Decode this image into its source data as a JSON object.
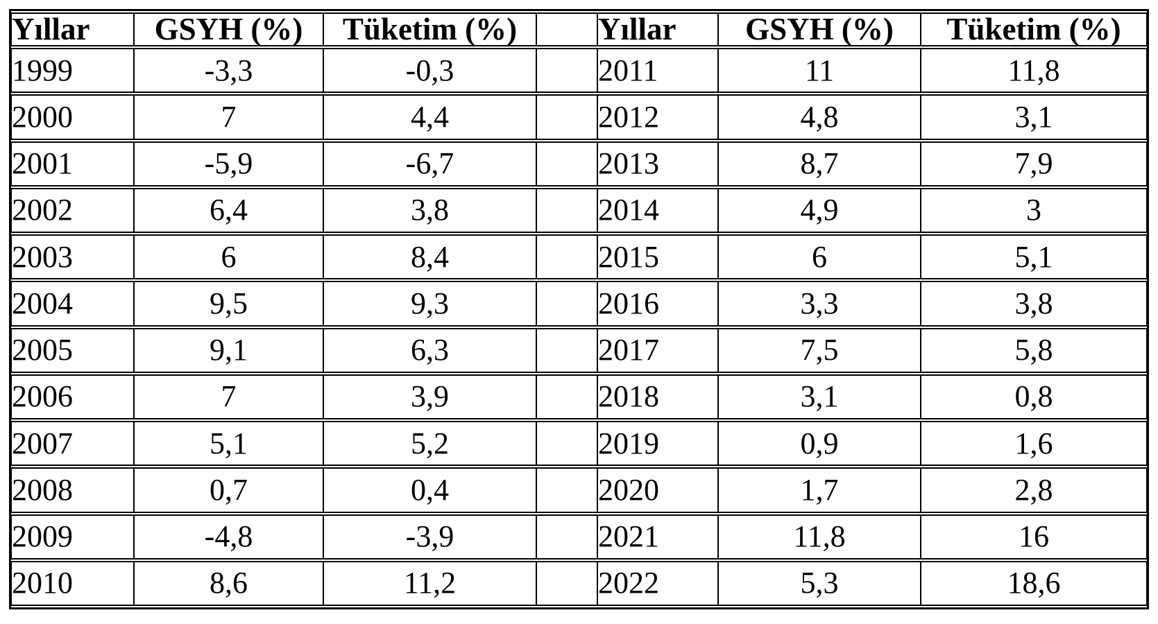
{
  "table": {
    "headers": [
      "Yıllar",
      "GSYH (%)",
      "Tüketim (%)",
      "",
      "Yıllar",
      "GSYH (%)",
      "Tüketim (%)"
    ],
    "rows": [
      [
        "1999",
        "-3,3",
        "-0,3",
        "",
        "2011",
        "11",
        "11,8"
      ],
      [
        "2000",
        "7",
        "4,4",
        "",
        "2012",
        "4,8",
        "3,1"
      ],
      [
        "2001",
        "-5,9",
        "-6,7",
        "",
        "2013",
        "8,7",
        "7,9"
      ],
      [
        "2002",
        "6,4",
        "3,8",
        "",
        "2014",
        "4,9",
        "3"
      ],
      [
        "2003",
        "6",
        "8,4",
        "",
        "2015",
        "6",
        "5,1"
      ],
      [
        "2004",
        "9,5",
        "9,3",
        "",
        "2016",
        "3,3",
        "3,8"
      ],
      [
        "2005",
        "9,1",
        "6,3",
        "",
        "2017",
        "7,5",
        "5,8"
      ],
      [
        "2006",
        "7",
        "3,9",
        "",
        "2018",
        "3,1",
        "0,8"
      ],
      [
        "2007",
        "5,1",
        "5,2",
        "",
        "2019",
        "0,9",
        "1,6"
      ],
      [
        "2008",
        "0,7",
        "0,4",
        "",
        "2020",
        "1,7",
        "2,8"
      ],
      [
        "2009",
        "-4,8",
        "-3,9",
        "",
        "2021",
        "11,8",
        "16"
      ],
      [
        "2010",
        "8,6",
        "11,2",
        "",
        "2022",
        "5,3",
        "18,6"
      ]
    ]
  },
  "chart_data": {
    "type": "table",
    "title": "",
    "columns": [
      "Yıllar",
      "GSYH (%)",
      "Tüketim (%)"
    ],
    "x": [
      1999,
      2000,
      2001,
      2002,
      2003,
      2004,
      2005,
      2006,
      2007,
      2008,
      2009,
      2010,
      2011,
      2012,
      2013,
      2014,
      2015,
      2016,
      2017,
      2018,
      2019,
      2020,
      2021,
      2022
    ],
    "series": [
      {
        "name": "GSYH (%)",
        "values": [
          -3.3,
          7,
          -5.9,
          6.4,
          6,
          9.5,
          9.1,
          7,
          5.1,
          0.7,
          -4.8,
          8.6,
          11,
          4.8,
          8.7,
          4.9,
          6,
          3.3,
          7.5,
          3.1,
          0.9,
          1.7,
          11.8,
          5.3
        ]
      },
      {
        "name": "Tüketim (%)",
        "values": [
          -0.3,
          4.4,
          -6.7,
          3.8,
          8.4,
          9.3,
          6.3,
          3.9,
          5.2,
          0.4,
          -3.9,
          11.2,
          11.8,
          3.1,
          7.9,
          3,
          5.1,
          3.8,
          5.8,
          0.8,
          1.6,
          2.8,
          16,
          18.6
        ]
      }
    ],
    "colors": {
      "border": "#000000",
      "text": "#000000",
      "background": "#ffffff"
    }
  }
}
